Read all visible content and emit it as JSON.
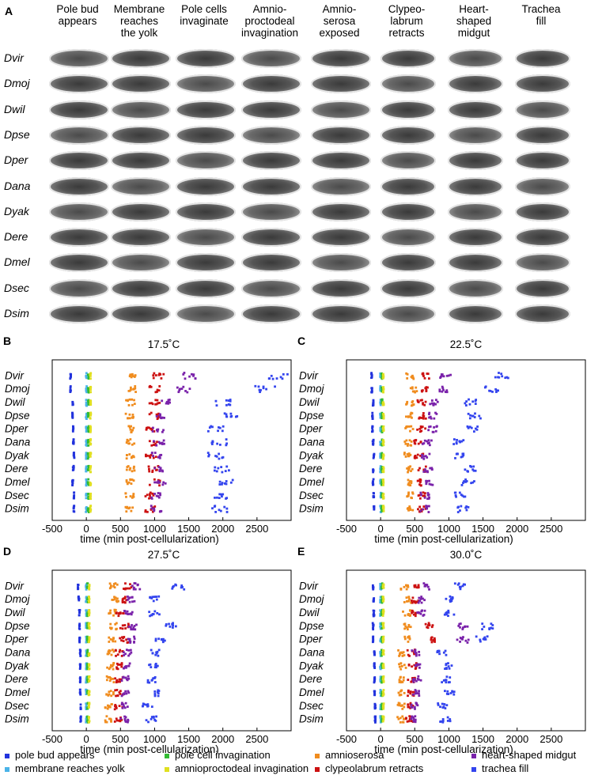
{
  "panel_a": {
    "letter": "A",
    "stages": [
      "Pole bud appears",
      "Membrane reaches the yolk",
      "Pole cells invaginate",
      "Amnio-proctodeal invagination",
      "Amnio-serosa exposed",
      "Clypeo-labrum retracts",
      "Heart-shaped midgut",
      "Trachea fill"
    ],
    "stage_lines": [
      [
        "Pole bud",
        "appears"
      ],
      [
        "Membrane",
        "reaches",
        "the yolk"
      ],
      [
        "Pole cells",
        "invaginate"
      ],
      [
        "Amnio-",
        "proctodeal",
        "invagination"
      ],
      [
        "Amnio-",
        "serosa",
        "exposed"
      ],
      [
        "Clypeo-",
        "labrum",
        "retracts"
      ],
      [
        "Heart-",
        "shaped",
        "midgut"
      ],
      [
        "Trachea",
        "fill"
      ]
    ],
    "species": [
      "Dvir",
      "Dmoj",
      "Dwil",
      "Dpse",
      "Dper",
      "Dana",
      "Dyak",
      "Dere",
      "Dmel",
      "Dsec",
      "Dsim"
    ]
  },
  "chart_data": [
    {
      "panel": "B",
      "type": "scatter",
      "title": "17.5˚C",
      "xlabel": "time (min post-cellularization)",
      "xlim": [
        -500,
        3000
      ],
      "xticks": [
        -500,
        0,
        500,
        1000,
        1500,
        2000,
        2500
      ],
      "species": [
        "Dvir",
        "Dmoj",
        "Dwil",
        "Dpse",
        "Dper",
        "Dana",
        "Dyak",
        "Dere",
        "Dmel",
        "Dsec",
        "Dsim"
      ],
      "means": [
        [
          -230,
          0,
          30,
          60,
          660,
          1050,
          1520,
          2830
        ],
        [
          -230,
          0,
          30,
          60,
          680,
          1000,
          1420,
          2620
        ],
        [
          -200,
          0,
          30,
          60,
          650,
          1000,
          1150,
          2000
        ],
        [
          -200,
          0,
          30,
          60,
          640,
          1000,
          1080,
          2100
        ],
        [
          -190,
          0,
          30,
          60,
          630,
          950,
          1050,
          1900
        ],
        [
          -190,
          0,
          30,
          60,
          650,
          980,
          1070,
          1950
        ],
        [
          -180,
          0,
          30,
          60,
          640,
          950,
          1030,
          1900
        ],
        [
          -190,
          0,
          30,
          60,
          650,
          980,
          1050,
          2000
        ],
        [
          -200,
          0,
          30,
          60,
          650,
          1000,
          1080,
          2050
        ],
        [
          -180,
          0,
          30,
          60,
          640,
          920,
          1020,
          1950
        ],
        [
          -180,
          0,
          30,
          60,
          640,
          930,
          1020,
          1950
        ]
      ]
    },
    {
      "panel": "C",
      "type": "scatter",
      "title": "22.5˚C",
      "xlabel": "time (min post-cellularization)",
      "xlim": [
        -500,
        3000
      ],
      "xticks": [
        -500,
        0,
        500,
        1000,
        1500,
        2000,
        2500
      ],
      "species": [
        "Dvir",
        "Dmoj",
        "Dwil",
        "Dpse",
        "Dper",
        "Dana",
        "Dyak",
        "Dere",
        "Dmel",
        "Dsec",
        "Dsim"
      ],
      "means": [
        [
          -130,
          0,
          20,
          40,
          430,
          650,
          950,
          1780
        ],
        [
          -130,
          0,
          20,
          40,
          480,
          650,
          920,
          1620
        ],
        [
          -110,
          0,
          20,
          40,
          430,
          600,
          780,
          1330
        ],
        [
          -120,
          0,
          20,
          40,
          430,
          600,
          760,
          1380
        ],
        [
          -120,
          0,
          20,
          40,
          420,
          600,
          760,
          1360
        ],
        [
          -110,
          0,
          20,
          40,
          400,
          550,
          680,
          1150
        ],
        [
          -100,
          0,
          20,
          40,
          400,
          560,
          660,
          1150
        ],
        [
          -110,
          0,
          20,
          40,
          420,
          600,
          700,
          1300
        ],
        [
          -110,
          0,
          20,
          40,
          420,
          600,
          730,
          1280
        ],
        [
          -100,
          0,
          20,
          40,
          420,
          600,
          650,
          1170
        ],
        [
          -100,
          0,
          20,
          40,
          420,
          600,
          650,
          1200
        ]
      ]
    },
    {
      "panel": "D",
      "type": "scatter",
      "title": "27.5˚C",
      "xlabel": "time (min post-cellularization)",
      "xlim": [
        -500,
        3000
      ],
      "xticks": [
        -500,
        0,
        500,
        1000,
        1500,
        2000,
        2500
      ],
      "species": [
        "Dvir",
        "Dmoj",
        "Dwil",
        "Dpse",
        "Dper",
        "Dana",
        "Dyak",
        "Dere",
        "Dmel",
        "Dsec",
        "Dsim"
      ],
      "means": [
        [
          -120,
          0,
          20,
          40,
          400,
          600,
          720,
          1350
        ],
        [
          -110,
          0,
          20,
          40,
          420,
          560,
          640,
          1000
        ],
        [
          -100,
          0,
          20,
          40,
          380,
          500,
          620,
          1000
        ],
        [
          -100,
          0,
          20,
          40,
          400,
          560,
          680,
          1250
        ],
        [
          -100,
          0,
          20,
          40,
          380,
          550,
          650,
          1100
        ],
        [
          -90,
          0,
          20,
          40,
          350,
          480,
          600,
          1000
        ],
        [
          -90,
          0,
          20,
          40,
          350,
          500,
          600,
          1000
        ],
        [
          -90,
          0,
          20,
          40,
          350,
          480,
          560,
          950
        ],
        [
          -90,
          0,
          20,
          40,
          350,
          480,
          560,
          1000
        ],
        [
          -80,
          0,
          20,
          40,
          330,
          470,
          550,
          900
        ],
        [
          -80,
          0,
          20,
          40,
          330,
          470,
          560,
          950
        ]
      ]
    },
    {
      "panel": "E",
      "type": "scatter",
      "title": "30.0˚C",
      "xlabel": "time (min post-cellularization)",
      "xlim": [
        -500,
        3000
      ],
      "xticks": [
        -500,
        0,
        500,
        1000,
        1500,
        2000,
        2500
      ],
      "species": [
        "Dvir",
        "Dmoj",
        "Dwil",
        "Dpse",
        "Dper",
        "Dana",
        "Dyak",
        "Dere",
        "Dmel",
        "Dsec",
        "Dsim"
      ],
      "means": [
        [
          -110,
          0,
          20,
          40,
          350,
          550,
          650,
          1150
        ],
        [
          -100,
          0,
          20,
          40,
          400,
          500,
          600,
          1000
        ],
        [
          -100,
          0,
          20,
          40,
          380,
          500,
          600,
          1000
        ],
        [
          -110,
          0,
          20,
          40,
          400,
          700,
          1200,
          1580
        ],
        [
          -110,
          0,
          20,
          40,
          400,
          800,
          1200,
          1500
        ],
        [
          -90,
          0,
          20,
          40,
          300,
          450,
          520,
          900
        ],
        [
          -90,
          0,
          20,
          40,
          320,
          470,
          540,
          1000
        ],
        [
          -90,
          0,
          20,
          40,
          320,
          450,
          530,
          950
        ],
        [
          -90,
          0,
          20,
          40,
          300,
          450,
          520,
          1000
        ],
        [
          -80,
          0,
          20,
          40,
          300,
          430,
          500,
          900
        ],
        [
          -80,
          0,
          20,
          40,
          300,
          430,
          500,
          950
        ]
      ]
    }
  ],
  "legend": [
    {
      "label": "pole bud appears",
      "color": "#2233dd"
    },
    {
      "label": "membrane reaches yolk",
      "color": "#4ab3e8"
    },
    {
      "label": "pole cell invagination",
      "color": "#33bb33"
    },
    {
      "label": "amnioproctodeal invagination",
      "color": "#e0e020"
    },
    {
      "label": "amnioserosa",
      "color": "#f08c1e"
    },
    {
      "label": "clypeolabrum retracts",
      "color": "#cc1111"
    },
    {
      "label": "heart-shaped midgut",
      "color": "#7a22aa"
    },
    {
      "label": "trachea fill",
      "color": "#3344ee"
    }
  ]
}
